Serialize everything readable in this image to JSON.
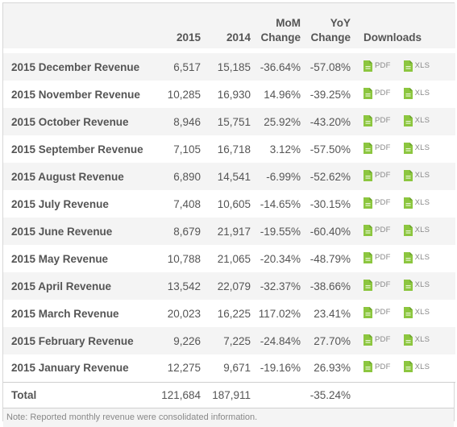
{
  "headers": {
    "y2015": "2015",
    "y2014": "2014",
    "mom_line1": "MoM",
    "mom_line2": "Change",
    "yoy_line1": "YoY",
    "yoy_line2": "Change",
    "downloads": "Downloads"
  },
  "rows": [
    {
      "name": "2015 December Revenue",
      "v2015": "6,517",
      "v2014": "15,185",
      "mom": "-36.64%",
      "yoy": "-57.08%"
    },
    {
      "name": "2015 November Revenue",
      "v2015": "10,285",
      "v2014": "16,930",
      "mom": "14.96%",
      "yoy": "-39.25%"
    },
    {
      "name": "2015 October Revenue",
      "v2015": "8,946",
      "v2014": "15,751",
      "mom": "25.92%",
      "yoy": "-43.20%"
    },
    {
      "name": "2015 September Revenue",
      "v2015": "7,105",
      "v2014": "16,718",
      "mom": "3.12%",
      "yoy": "-57.50%"
    },
    {
      "name": "2015 August Revenue",
      "v2015": "6,890",
      "v2014": "14,541",
      "mom": "-6.99%",
      "yoy": "-52.62%"
    },
    {
      "name": "2015 July Revenue",
      "v2015": "7,408",
      "v2014": "10,605",
      "mom": "-14.65%",
      "yoy": "-30.15%"
    },
    {
      "name": "2015 June Revenue",
      "v2015": "8,679",
      "v2014": "21,917",
      "mom": "-19.55%",
      "yoy": "-60.40%"
    },
    {
      "name": "2015 May Revenue",
      "v2015": "10,788",
      "v2014": "21,065",
      "mom": "-20.34%",
      "yoy": "-48.79%"
    },
    {
      "name": "2015 April Revenue",
      "v2015": "13,542",
      "v2014": "22,079",
      "mom": "-32.37%",
      "yoy": "-38.66%"
    },
    {
      "name": "2015 March Revenue",
      "v2015": "20,023",
      "v2014": "16,225",
      "mom": "117.02%",
      "yoy": "23.41%"
    },
    {
      "name": "2015 February Revenue",
      "v2015": "9,226",
      "v2014": "7,225",
      "mom": "-24.84%",
      "yoy": "27.70%"
    },
    {
      "name": "2015 January Revenue",
      "v2015": "12,275",
      "v2014": "9,671",
      "mom": "-19.16%",
      "yoy": "26.93%"
    }
  ],
  "downloads": {
    "pdf_label": "PDF",
    "xls_label": "XLS",
    "pdf_icon": "pdf-file-icon",
    "xls_icon": "xls-file-icon"
  },
  "total": {
    "label": "Total",
    "v2015": "121,684",
    "v2014": "187,911",
    "mom": "",
    "yoy": "-35.24%"
  },
  "note": "Note: Reported monthly revenue were consolidated information.",
  "colors": {
    "icon_green": "#8cc63f",
    "row_stripe": "#f4f4f4",
    "border": "#d7d7d7"
  }
}
